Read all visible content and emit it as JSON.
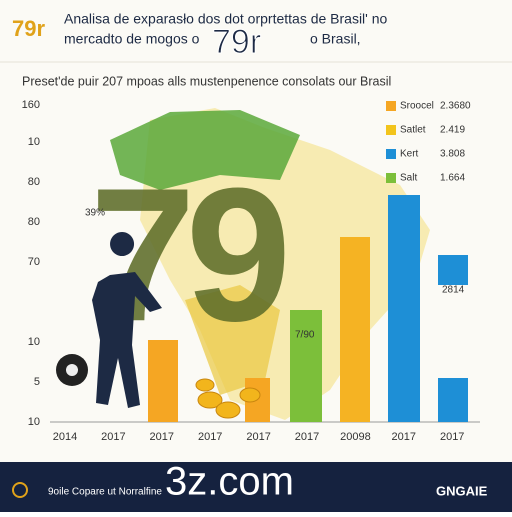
{
  "header": {
    "logo": "79r",
    "title_line1": "Analisa de exparasło dos dot orprtettas de Brasil' no",
    "title_line2": "mercadto de mogos o",
    "overlay": "79r",
    "title_tail": "o Brasil,"
  },
  "subtitle": "Preset'de puir 207 mpoas alls mustenpenence consolats our Brasil",
  "y_axis_labels": [
    "160",
    "10",
    "80",
    "80",
    "70",
    "10",
    "5",
    "10"
  ],
  "x_axis_labels": [
    "2014",
    "2017",
    "2017",
    "2017",
    "2017",
    "2017",
    "20098",
    "2017",
    "2017"
  ],
  "legend": [
    {
      "name": "Sroocel",
      "value": "2.3680",
      "color": "#f5a623"
    },
    {
      "name": "Satlet",
      "value": "2.419",
      "color": "#f2c41c"
    },
    {
      "name": "Kert",
      "value": "3.808",
      "color": "#1e8fd6"
    },
    {
      "name": "Salt",
      "value": "1.664",
      "color": "#7cbf3a"
    }
  ],
  "annotations": [
    "39%",
    "7/90",
    "2814"
  ],
  "big_overlay": "79",
  "footer": {
    "left": "9oile Copare ut Norralfine",
    "overlay": "3z.com",
    "right": "GNGAIE"
  }
}
